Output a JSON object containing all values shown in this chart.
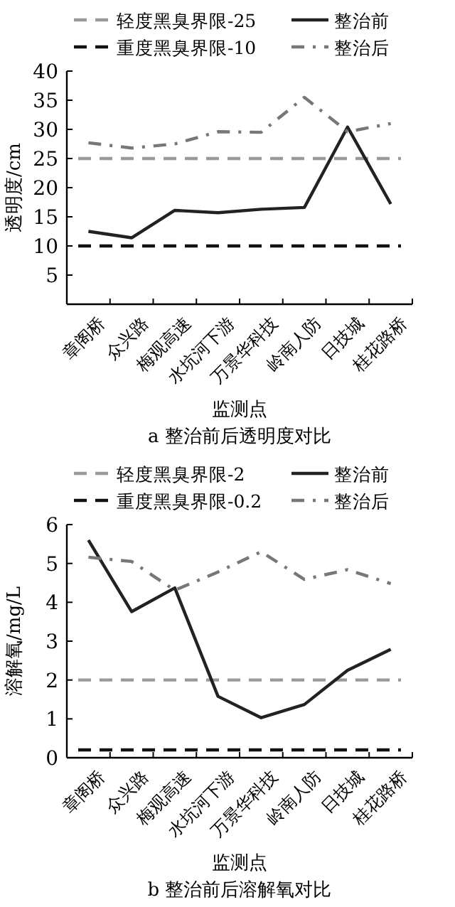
{
  "chart_data": [
    {
      "type": "line",
      "xlabel": "监测点",
      "ylabel": "透明度/cm",
      "categories": [
        "章阁桥",
        "众兴路",
        "梅观高速",
        "水坑河下游",
        "万景华科技",
        "岭南人防",
        "日技城",
        "桂花路桥"
      ],
      "series": [
        {
          "name": "整治前",
          "color": "#222222",
          "line_style": "solid",
          "values": [
            12.5,
            11.4,
            16.1,
            15.7,
            16.3,
            16.6,
            30.4,
            17.2
          ]
        },
        {
          "name": "整治后",
          "color": "#777777",
          "line_style": "dashdot",
          "values": [
            27.7,
            26.8,
            27.5,
            29.6,
            29.5,
            35.5,
            29.6,
            31.0
          ]
        }
      ],
      "ref_lines": [
        {
          "axis": "y",
          "value": 25,
          "label": "轻度黑臭界限-25",
          "color": "#9a9a9a",
          "line_style": "dashed"
        },
        {
          "axis": "y",
          "value": 10,
          "label": "重度黑臭界限-10",
          "color": "#111111",
          "line_style": "dashed"
        }
      ],
      "ylim": [
        0,
        40
      ],
      "yticks": [
        5,
        10,
        15,
        20,
        25,
        30,
        35,
        40
      ],
      "legend": "top",
      "grid": false,
      "annotations": [
        "a 整治前后透明度对比"
      ]
    },
    {
      "type": "line",
      "xlabel": "监测点",
      "ylabel": "溶解氧/mg/L",
      "categories": [
        "章阁桥",
        "众兴路",
        "梅观高速",
        "水坑河下游",
        "万景华科技",
        "岭南人防",
        "日技城",
        "桂花路桥"
      ],
      "series": [
        {
          "name": "整治前",
          "color": "#222222",
          "line_style": "solid",
          "values": [
            5.6,
            3.76,
            4.37,
            1.58,
            1.03,
            1.37,
            2.25,
            2.79
          ]
        },
        {
          "name": "整治后",
          "color": "#777777",
          "line_style": "dashdot",
          "values": [
            5.16,
            5.05,
            4.31,
            4.78,
            5.3,
            4.59,
            4.84,
            4.48
          ]
        }
      ],
      "ref_lines": [
        {
          "axis": "y",
          "value": 2,
          "label": "轻度黑臭界限-2",
          "color": "#9a9a9a",
          "line_style": "dashed"
        },
        {
          "axis": "y",
          "value": 0.2,
          "label": "重度黑臭界限-0.2",
          "color": "#111111",
          "line_style": "dashed"
        }
      ],
      "ylim": [
        0,
        6
      ],
      "yticks": [
        0,
        1,
        2,
        3,
        4,
        5,
        6
      ],
      "legend": "top",
      "grid": false,
      "annotations": [
        "b 整治前后溶解氧对比"
      ]
    }
  ]
}
